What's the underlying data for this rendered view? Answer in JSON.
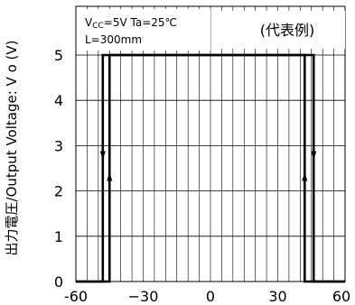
{
  "chart_data": {
    "type": "line",
    "title": "",
    "ylabel": "出力電圧/Output Voltage: V o (V)",
    "xlabel": "",
    "xlim": [
      -60,
      60
    ],
    "ylim": [
      0,
      5.5
    ],
    "xticks": [
      -60,
      -30,
      0,
      30,
      60
    ],
    "xtick_labels": [
      "-60",
      "−30",
      "0",
      "30",
      "60"
    ],
    "yticks": [
      0,
      1,
      2,
      3,
      4,
      5
    ],
    "ytick_labels": [
      "0",
      "1",
      "2",
      "3",
      "4",
      "5"
    ],
    "grid": true,
    "conditions": {
      "vcc_prefix": "V",
      "vcc_sub": "CC",
      "vcc_rest": "=5V  Ta=25℃",
      "length": "L=300mm"
    },
    "note": "(代表例)",
    "series": [
      {
        "values": [
          [
            -60,
            0
          ],
          [
            -45,
            0
          ],
          [
            -45,
            5
          ],
          [
            46,
            5
          ],
          [
            46,
            0
          ],
          [
            60,
            0
          ]
        ]
      },
      {
        "values": [
          [
            -60,
            0
          ],
          [
            -48,
            0
          ],
          [
            -48,
            5
          ],
          [
            42,
            5
          ],
          [
            42,
            0
          ],
          [
            60,
            0
          ]
        ]
      }
    ],
    "arrows": [
      {
        "x": -48,
        "y": 2.8,
        "direction": "down"
      },
      {
        "x": -45,
        "y": 2.3,
        "direction": "up"
      },
      {
        "x": 42,
        "y": 2.3,
        "direction": "up"
      },
      {
        "x": 46,
        "y": 2.8,
        "direction": "down"
      }
    ]
  }
}
